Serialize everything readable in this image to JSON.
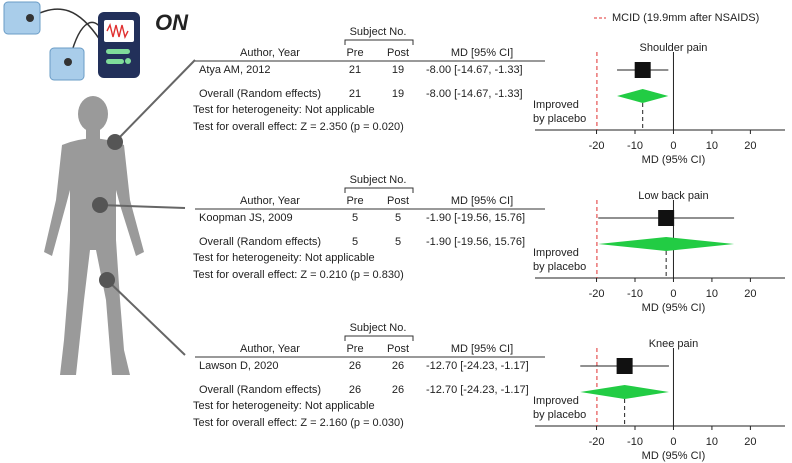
{
  "header": {
    "label": "ON"
  },
  "legend": "MCID (19.9mm after NSAIDS)",
  "chart_data": [
    {
      "type": "forest",
      "title": "Shoulder pain",
      "columns": {
        "author": "Author, Year",
        "subject": "Subject No.",
        "pre": "Pre",
        "post": "Post",
        "md": "MD [95% CI]"
      },
      "study": {
        "name": "Atya AM, 2012",
        "pre": 21,
        "post": 19,
        "md": -8.0,
        "ci": [
          -14.67,
          -1.33
        ],
        "md_label": "-8.00 [-14.67, -1.33]"
      },
      "overall": {
        "name": "Overall (Random effects)",
        "pre": 21,
        "post": 19,
        "md": -8.0,
        "ci": [
          -14.67,
          -1.33
        ],
        "md_label": "-8.00 [-14.67, -1.33]"
      },
      "heterogeneity": "Test for heterogeneity: Not applicable",
      "effect_test": "Test for overall effect: Z = 2.350 (p = 0.020)",
      "annotation": [
        "Improved",
        "by placebo"
      ],
      "mcid": -19.9,
      "xlim": [
        -36,
        29
      ],
      "xticks": [
        -20,
        -10,
        0,
        10,
        20
      ],
      "xlabel": "MD (95% CI)",
      "colors": {
        "study": "#111111",
        "overall": "#22cc44",
        "mcid": "#e03030"
      }
    },
    {
      "type": "forest",
      "title": "Low back pain",
      "columns": {
        "author": "Author, Year",
        "subject": "Subject No.",
        "pre": "Pre",
        "post": "Post",
        "md": "MD [95% CI]"
      },
      "study": {
        "name": "Koopman JS, 2009",
        "pre": 5,
        "post": 5,
        "md": -1.9,
        "ci": [
          -19.56,
          15.76
        ],
        "md_label": "-1.90  [-19.56, 15.76]"
      },
      "overall": {
        "name": "Overall (Random effects)",
        "pre": 5,
        "post": 5,
        "md": -1.9,
        "ci": [
          -19.56,
          15.76
        ],
        "md_label": "-1.90  [-19.56, 15.76]"
      },
      "heterogeneity": "Test for heterogeneity: Not applicable",
      "effect_test": "Test for overall effect: Z = 0.210 (p = 0.830)",
      "annotation": [
        "Improved",
        "by placebo"
      ],
      "mcid": -19.9,
      "xlim": [
        -36,
        29
      ],
      "xticks": [
        -20,
        -10,
        0,
        10,
        20
      ],
      "xlabel": "MD (95% CI)",
      "colors": {
        "study": "#111111",
        "overall": "#22cc44",
        "mcid": "#e03030"
      }
    },
    {
      "type": "forest",
      "title": "Knee pain",
      "columns": {
        "author": "Author, Year",
        "subject": "Subject No.",
        "pre": "Pre",
        "post": "Post",
        "md": "MD [95% CI]"
      },
      "study": {
        "name": "Lawson D, 2020",
        "pre": 26,
        "post": 26,
        "md": -12.7,
        "ci": [
          -24.23,
          -1.17
        ],
        "md_label": "-12.70 [-24.23, -1.17]"
      },
      "overall": {
        "name": "Overall (Random effects)",
        "pre": 26,
        "post": 26,
        "md": -12.7,
        "ci": [
          -24.23,
          -1.17
        ],
        "md_label": "-12.70 [-24.23, -1.17]"
      },
      "heterogeneity": "Test for heterogeneity: Not applicable",
      "effect_test": "Test for overall effect: Z = 2.160 (p = 0.030)",
      "annotation": [
        "Improved",
        "by placebo"
      ],
      "mcid": -19.9,
      "xlim": [
        -36,
        29
      ],
      "xticks": [
        -20,
        -10,
        0,
        10,
        20
      ],
      "xlabel": "MD (95% CI)",
      "colors": {
        "study": "#111111",
        "overall": "#22cc44",
        "mcid": "#e03030"
      }
    }
  ]
}
